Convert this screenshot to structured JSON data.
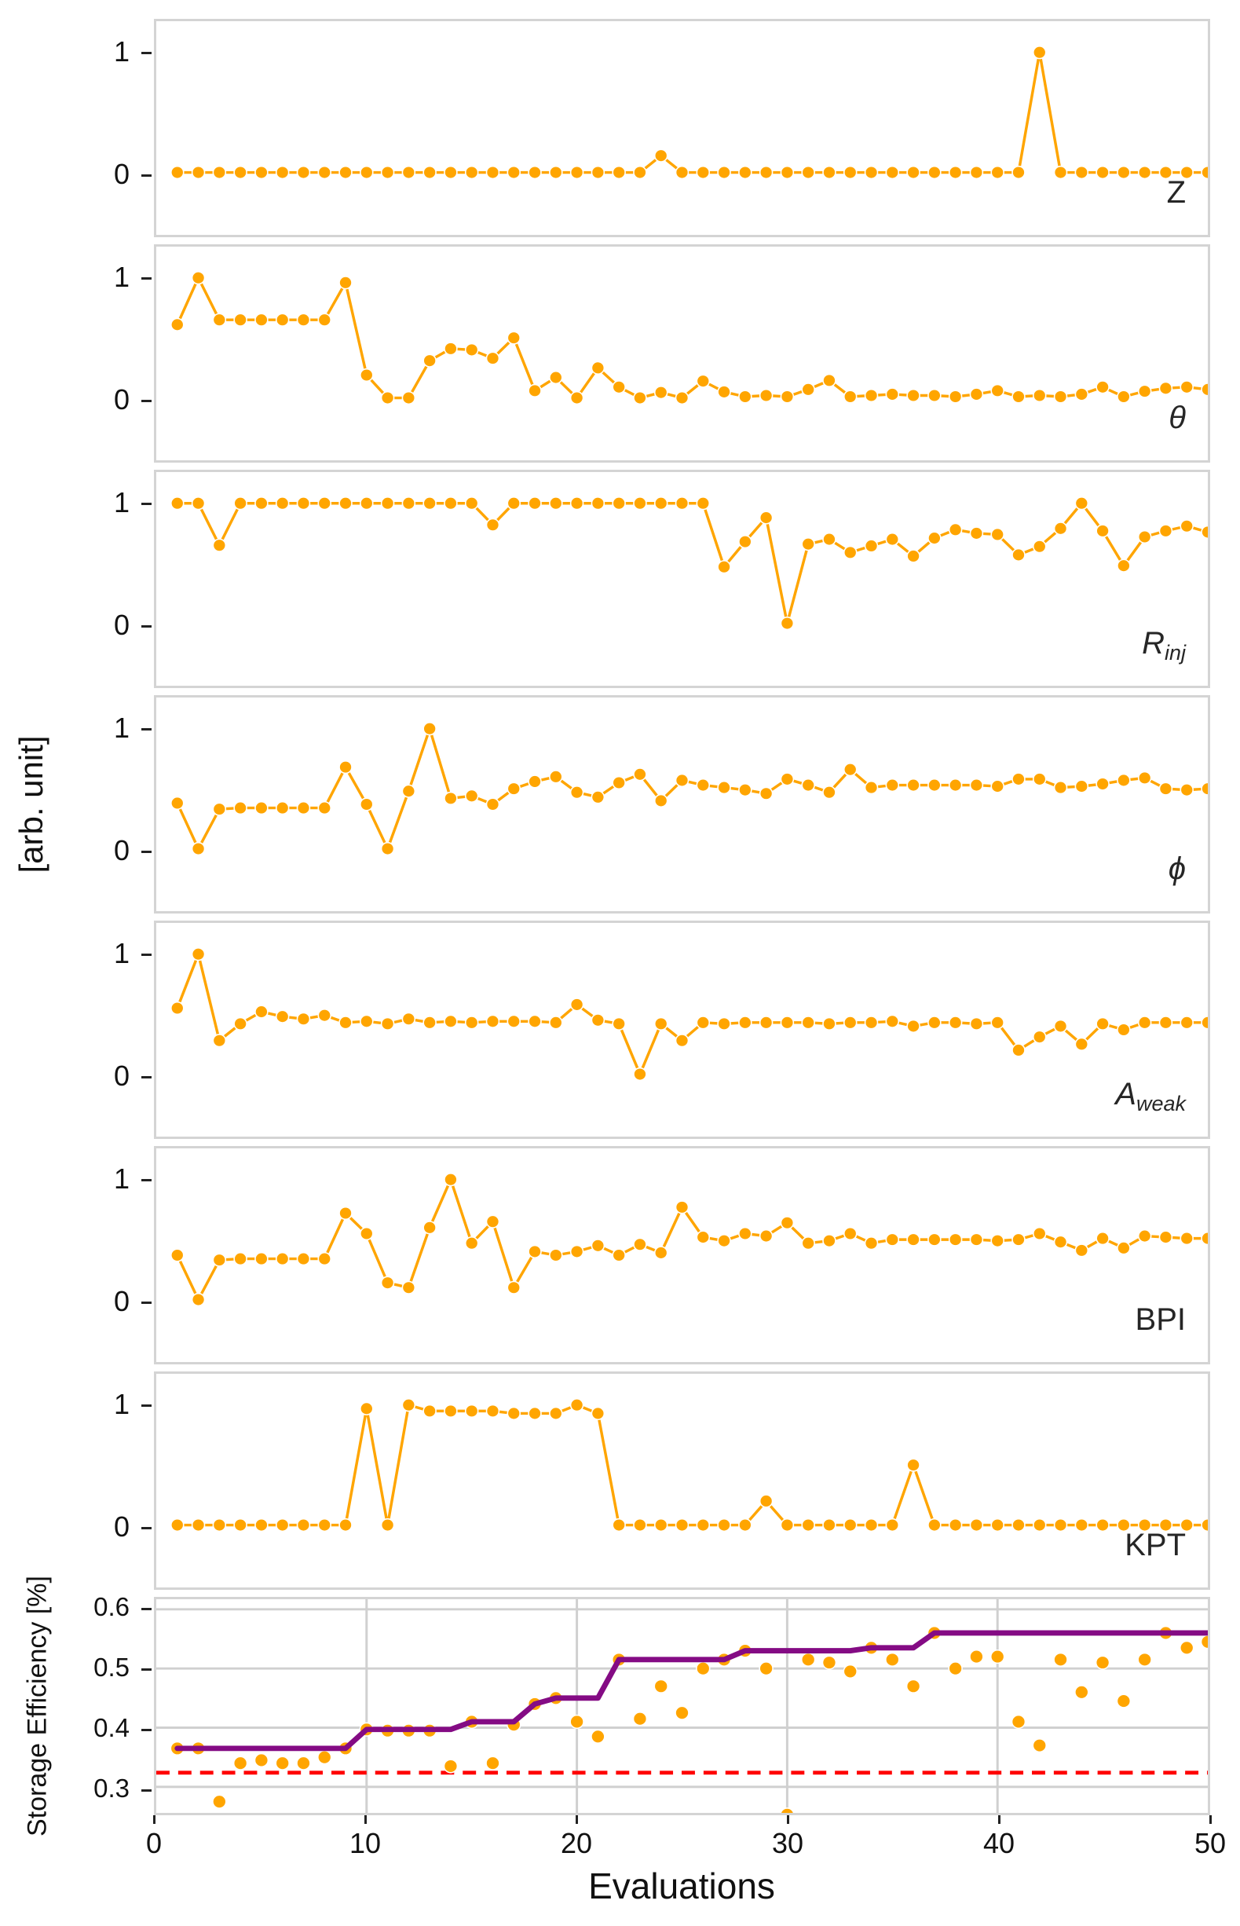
{
  "figure": {
    "xlabel": "Evaluations",
    "ylabel_shared": "[arb. unit]",
    "x_ticks": [
      0,
      10,
      20,
      30,
      40,
      50
    ],
    "x_range": [
      0,
      50
    ],
    "colors": {
      "series_orange": "#FFA500",
      "marker_edge": "#FFFFFF",
      "best_line_purple": "#840B84",
      "threshold_red": "#FF0000",
      "grid": "#D0D0D0",
      "panel_border": "#D4D4D4",
      "text": "#111111"
    }
  },
  "chart_data": [
    {
      "id": "Z",
      "type": "line",
      "label": {
        "text": "Z",
        "italic": false
      },
      "x_note": "x = evaluation index 1..50",
      "yticks": [
        0,
        1
      ],
      "ylim": [
        -0.52,
        1.26
      ],
      "values": [
        0,
        0,
        0,
        0,
        0,
        0,
        0,
        0,
        0,
        0,
        0,
        0,
        0,
        0,
        0,
        0,
        0,
        0,
        0,
        0,
        0,
        0,
        0,
        0.14,
        0,
        0,
        0,
        0,
        0,
        0,
        0,
        0,
        0,
        0,
        0,
        0,
        0,
        0,
        0,
        0,
        0,
        1.0,
        0,
        0,
        0,
        0,
        0,
        0,
        0,
        0
      ]
    },
    {
      "id": "theta",
      "type": "line",
      "label": {
        "text": "θ",
        "italic": true
      },
      "x_note": "x = evaluation index 1..50",
      "yticks": [
        0,
        1
      ],
      "ylim": [
        -0.52,
        1.26
      ],
      "values": [
        0.61,
        1.0,
        0.65,
        0.65,
        0.65,
        0.65,
        0.65,
        0.65,
        0.96,
        0.19,
        0.0,
        0.0,
        0.31,
        0.41,
        0.4,
        0.33,
        0.5,
        0.06,
        0.17,
        0.0,
        0.25,
        0.09,
        0.0,
        0.045,
        0.0,
        0.14,
        0.05,
        0.01,
        0.02,
        0.01,
        0.07,
        0.145,
        0.01,
        0.02,
        0.03,
        0.02,
        0.02,
        0.01,
        0.03,
        0.06,
        0.01,
        0.02,
        0.01,
        0.03,
        0.09,
        0.01,
        0.055,
        0.08,
        0.09,
        0.07
      ]
    },
    {
      "id": "Rinj",
      "type": "line",
      "label": {
        "text": "R",
        "sub": "inj",
        "italic": true
      },
      "x_note": "x = evaluation index 1..50",
      "yticks": [
        0,
        1
      ],
      "ylim": [
        -0.52,
        1.26
      ],
      "values": [
        1,
        1,
        0.65,
        1,
        1,
        1,
        1,
        1,
        1,
        1,
        1,
        1,
        1,
        1,
        1,
        0.82,
        1,
        1,
        1,
        1,
        1,
        1,
        1,
        1,
        1,
        1,
        0.47,
        0.68,
        0.88,
        0.0,
        0.66,
        0.7,
        0.59,
        0.645,
        0.7,
        0.56,
        0.71,
        0.78,
        0.75,
        0.74,
        0.57,
        0.64,
        0.79,
        1.0,
        0.77,
        0.48,
        0.72,
        0.77,
        0.81,
        0.76
      ]
    },
    {
      "id": "phi",
      "type": "line",
      "label": {
        "text": "ϕ",
        "italic": true
      },
      "x_note": "x = evaluation index 1..50",
      "yticks": [
        0,
        1
      ],
      "ylim": [
        -0.52,
        1.26
      ],
      "values": [
        0.38,
        0.0,
        0.33,
        0.34,
        0.34,
        0.34,
        0.34,
        0.34,
        0.68,
        0.37,
        0.0,
        0.48,
        1.0,
        0.42,
        0.44,
        0.37,
        0.5,
        0.56,
        0.6,
        0.47,
        0.43,
        0.55,
        0.62,
        0.4,
        0.57,
        0.53,
        0.51,
        0.49,
        0.46,
        0.58,
        0.53,
        0.47,
        0.66,
        0.51,
        0.53,
        0.53,
        0.53,
        0.53,
        0.53,
        0.52,
        0.58,
        0.58,
        0.51,
        0.52,
        0.54,
        0.57,
        0.59,
        0.5,
        0.49,
        0.5
      ]
    },
    {
      "id": "Aweak",
      "type": "line",
      "label": {
        "text": "A",
        "sub": "weak",
        "italic": true
      },
      "x_note": "x = evaluation index 1..50",
      "yticks": [
        0,
        1
      ],
      "ylim": [
        -0.52,
        1.26
      ],
      "values": [
        0.55,
        1.0,
        0.28,
        0.42,
        0.52,
        0.48,
        0.46,
        0.49,
        0.43,
        0.44,
        0.42,
        0.46,
        0.43,
        0.44,
        0.43,
        0.44,
        0.44,
        0.44,
        0.43,
        0.58,
        0.45,
        0.42,
        0.0,
        0.42,
        0.28,
        0.43,
        0.42,
        0.43,
        0.43,
        0.43,
        0.43,
        0.42,
        0.43,
        0.43,
        0.44,
        0.4,
        0.43,
        0.43,
        0.42,
        0.43,
        0.2,
        0.31,
        0.4,
        0.25,
        0.42,
        0.37,
        0.43,
        0.43,
        0.43,
        0.43
      ]
    },
    {
      "id": "BPI",
      "type": "line",
      "label": {
        "text": "BPI",
        "italic": false
      },
      "x_note": "x = evaluation index 1..50",
      "yticks": [
        0,
        1
      ],
      "ylim": [
        -0.52,
        1.26
      ],
      "values": [
        0.37,
        0.0,
        0.33,
        0.34,
        0.34,
        0.34,
        0.34,
        0.34,
        0.72,
        0.55,
        0.14,
        0.1,
        0.6,
        1.0,
        0.47,
        0.65,
        0.1,
        0.4,
        0.37,
        0.4,
        0.45,
        0.37,
        0.46,
        0.39,
        0.77,
        0.52,
        0.49,
        0.55,
        0.53,
        0.64,
        0.47,
        0.49,
        0.55,
        0.47,
        0.5,
        0.5,
        0.5,
        0.5,
        0.5,
        0.49,
        0.5,
        0.55,
        0.48,
        0.41,
        0.51,
        0.43,
        0.53,
        0.52,
        0.51,
        0.51
      ]
    },
    {
      "id": "KPT",
      "type": "line",
      "label": {
        "text": "KPT",
        "italic": false
      },
      "x_note": "x = evaluation index 1..50",
      "yticks": [
        0,
        1
      ],
      "ylim": [
        -0.52,
        1.26
      ],
      "values": [
        0,
        0,
        0,
        0,
        0,
        0,
        0,
        0,
        0,
        0.97,
        0,
        1.0,
        0.95,
        0.95,
        0.95,
        0.95,
        0.93,
        0.93,
        0.93,
        1.0,
        0.93,
        0,
        0,
        0,
        0,
        0,
        0,
        0,
        0.2,
        0,
        0,
        0,
        0,
        0,
        0,
        0.5,
        0,
        0,
        0,
        0,
        0,
        0,
        0,
        0,
        0,
        0,
        0,
        0,
        0,
        0
      ]
    },
    {
      "id": "storage_efficiency",
      "type": "scatter",
      "ylabel": "Storage Efficiency [%]",
      "x_note": "x = evaluation index 1..50",
      "yticks": [
        0.3,
        0.4,
        0.5,
        0.6
      ],
      "ylim": [
        0.256,
        0.617
      ],
      "grid": true,
      "scatter": [
        0.365,
        0.365,
        0.275,
        0.34,
        0.345,
        0.34,
        0.34,
        0.35,
        0.365,
        0.397,
        0.395,
        0.395,
        0.395,
        0.335,
        0.41,
        0.34,
        0.405,
        0.44,
        0.45,
        0.41,
        0.385,
        0.515,
        0.415,
        0.47,
        0.425,
        0.5,
        0.515,
        0.53,
        0.5,
        0.253,
        0.515,
        0.51,
        0.495,
        0.535,
        0.515,
        0.47,
        0.56,
        0.5,
        0.52,
        0.52,
        0.41,
        0.37,
        0.515,
        0.46,
        0.51,
        0.445,
        0.515,
        0.56,
        0.535,
        0.545
      ],
      "best_so_far": [
        0.365,
        0.365,
        0.365,
        0.365,
        0.365,
        0.365,
        0.365,
        0.365,
        0.365,
        0.397,
        0.397,
        0.397,
        0.397,
        0.397,
        0.41,
        0.41,
        0.41,
        0.44,
        0.45,
        0.45,
        0.45,
        0.515,
        0.515,
        0.515,
        0.515,
        0.515,
        0.515,
        0.53,
        0.53,
        0.53,
        0.53,
        0.53,
        0.53,
        0.535,
        0.535,
        0.535,
        0.56,
        0.56,
        0.56,
        0.56,
        0.56,
        0.56,
        0.56,
        0.56,
        0.56,
        0.56,
        0.56,
        0.56,
        0.56,
        0.56
      ],
      "threshold": 0.324
    }
  ]
}
